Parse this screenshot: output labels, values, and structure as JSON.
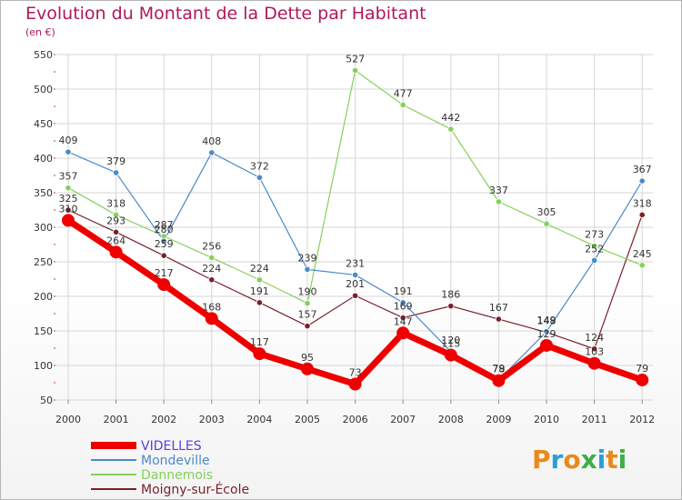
{
  "header": {
    "title": "Evolution du Montant de la Dette par Habitant",
    "subtitle": "(en €)"
  },
  "logo": {
    "text": "Proxiti",
    "letters": [
      "P",
      "r",
      "o",
      "x",
      "i",
      "t",
      "i"
    ],
    "colors": [
      "#e88a1a",
      "#2a9fd6",
      "#e88a1a",
      "#3fae49",
      "#2a9fd6",
      "#e88a1a",
      "#3fae49"
    ]
  },
  "chart_data": {
    "type": "line",
    "x": [
      "2000",
      "2001",
      "2002",
      "2003",
      "2004",
      "2005",
      "2006",
      "2007",
      "2008",
      "2009",
      "2010",
      "2011",
      "2012"
    ],
    "ylim": [
      50,
      550
    ],
    "yticks": [
      50,
      100,
      150,
      200,
      250,
      300,
      350,
      400,
      450,
      500,
      550
    ],
    "grid": true,
    "legend_position": "bottom-left",
    "series": [
      {
        "name": "VIDELLES",
        "color": "#ee0000",
        "labelColor": "#5b3ce0",
        "width": 7,
        "values": [
          310,
          264,
          217,
          168,
          117,
          95,
          73,
          147,
          115,
          78,
          129,
          103,
          79
        ]
      },
      {
        "name": "Mondeville",
        "color": "#4a8ac8",
        "labelColor": "#4a8ac8",
        "width": 1.2,
        "values": [
          409,
          379,
          280,
          408,
          372,
          239,
          231,
          191,
          120,
          79,
          149,
          252,
          367
        ]
      },
      {
        "name": "Dannemois",
        "color": "#86d05a",
        "labelColor": "#86d05a",
        "width": 1.2,
        "values": [
          357,
          318,
          287,
          256,
          224,
          190,
          527,
          477,
          442,
          337,
          305,
          273,
          245
        ]
      },
      {
        "name": "Moigny-sur-École",
        "color": "#7a1f2a",
        "labelColor": "#7a1f2a",
        "width": 1.2,
        "values": [
          325,
          293,
          259,
          224,
          191,
          157,
          201,
          169,
          186,
          167,
          148,
          124,
          318
        ]
      }
    ]
  }
}
